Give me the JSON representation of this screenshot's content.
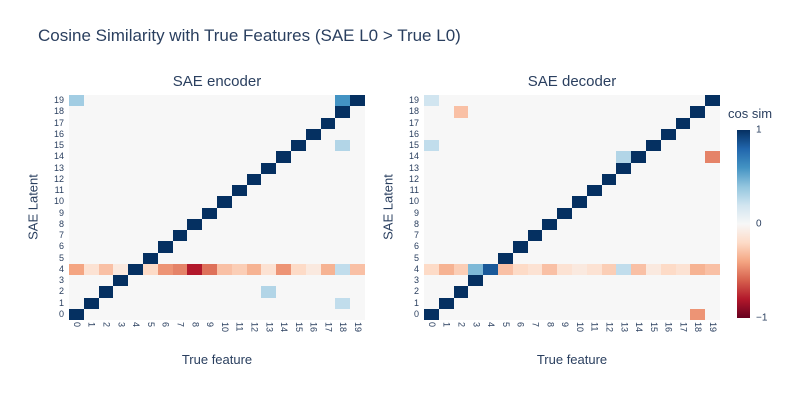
{
  "title": "Cosine Similarity with True Features (SAE L0 > True L0)",
  "axes": {
    "x_label": "True feature",
    "y_label": "SAE Latent",
    "tick_labels": [
      "0",
      "1",
      "2",
      "3",
      "4",
      "5",
      "6",
      "7",
      "8",
      "9",
      "10",
      "11",
      "12",
      "13",
      "14",
      "15",
      "16",
      "17",
      "18",
      "19"
    ]
  },
  "colorbar": {
    "title": "cos sim",
    "ticks": [
      "1",
      "0",
      "−1"
    ],
    "min": -1,
    "max": 1,
    "gradient_stops": [
      "#67001f",
      "#b2182b",
      "#d6604d",
      "#f4a582",
      "#fddbc7",
      "#f7f7f7",
      "#d1e5f0",
      "#92c5de",
      "#4393c3",
      "#2166ac",
      "#053061"
    ]
  },
  "chart_data": [
    {
      "type": "heatmap",
      "title": "SAE encoder",
      "xlabel": "True feature",
      "ylabel": "SAE Latent",
      "zmin": -1,
      "zmax": 1,
      "colorscale": "RdBu",
      "z": [
        [
          1,
          0,
          0,
          0,
          0,
          0,
          0,
          0,
          0,
          0,
          0,
          0,
          0,
          0,
          0,
          0,
          0,
          0,
          0,
          0
        ],
        [
          0,
          1,
          0,
          0,
          0,
          0,
          0,
          0,
          0,
          0,
          0,
          0,
          0,
          0,
          0,
          0,
          0,
          0,
          0.25,
          0
        ],
        [
          0,
          0,
          1,
          0,
          0,
          0,
          0,
          0,
          0,
          0,
          0,
          0,
          0,
          0.3,
          0,
          0,
          0,
          0,
          0,
          0
        ],
        [
          0,
          0,
          0,
          1,
          0,
          0,
          0,
          0,
          0,
          0,
          0,
          0,
          0,
          0,
          0,
          0,
          0,
          0,
          0,
          0
        ],
        [
          -0.4,
          -0.15,
          -0.3,
          -0.1,
          1,
          -0.2,
          -0.45,
          -0.5,
          -0.8,
          -0.55,
          -0.3,
          -0.25,
          -0.35,
          -0.15,
          -0.45,
          -0.2,
          -0.1,
          -0.35,
          0.25,
          -0.3
        ],
        [
          0,
          0,
          0,
          0,
          0,
          1,
          0,
          0,
          0,
          0,
          0,
          0,
          0,
          0,
          0,
          0,
          0,
          0,
          0,
          0
        ],
        [
          0,
          0,
          0,
          0,
          0,
          0,
          1,
          0,
          0,
          0,
          0,
          0,
          0,
          0,
          0,
          0,
          0,
          0,
          0,
          0
        ],
        [
          0,
          0,
          0,
          0,
          0,
          0,
          0,
          1,
          0,
          0,
          0,
          0,
          0,
          0,
          0,
          0,
          0,
          0,
          0,
          0
        ],
        [
          0,
          0,
          0,
          0,
          0,
          0,
          0,
          0,
          1,
          0,
          0,
          0,
          0,
          0,
          0,
          0,
          0,
          0,
          0,
          0
        ],
        [
          0,
          0,
          0,
          0,
          0,
          0,
          0,
          0,
          0,
          1,
          0,
          0,
          0,
          0,
          0,
          0,
          0,
          0,
          0,
          0
        ],
        [
          0,
          0,
          0,
          0,
          0,
          0,
          0,
          0,
          0,
          0,
          1,
          0,
          0,
          0,
          0,
          0,
          0,
          0,
          0,
          0
        ],
        [
          0,
          0,
          0,
          0,
          0,
          0,
          0,
          0,
          0,
          0,
          0,
          1,
          0,
          0,
          0,
          0,
          0,
          0,
          0,
          0
        ],
        [
          0,
          0,
          0,
          0,
          0,
          0,
          0,
          0,
          0,
          0,
          0,
          0,
          1,
          0,
          0,
          0,
          0,
          0,
          0,
          0
        ],
        [
          0,
          0,
          0,
          0,
          0,
          0,
          0,
          0,
          0,
          0,
          0,
          0,
          0,
          1,
          0,
          0,
          0,
          0,
          0,
          0
        ],
        [
          0,
          0,
          0,
          0,
          0,
          0,
          0,
          0,
          0,
          0,
          0,
          0,
          0,
          0,
          1,
          0,
          0,
          0,
          0,
          0
        ],
        [
          0,
          0,
          0,
          0,
          0,
          0,
          0,
          0,
          0,
          0,
          0,
          0,
          0,
          0,
          0,
          1,
          0,
          0,
          0.3,
          0
        ],
        [
          0,
          0,
          0,
          0,
          0,
          0,
          0,
          0,
          0,
          0,
          0,
          0,
          0,
          0,
          0,
          0,
          1,
          0,
          0,
          0
        ],
        [
          0,
          0,
          0,
          0,
          0,
          0,
          0,
          0,
          0,
          0,
          0,
          0,
          0,
          0,
          0,
          0,
          0,
          1,
          0,
          0
        ],
        [
          0,
          0,
          0,
          0,
          0,
          0,
          0,
          0,
          0,
          0,
          0,
          0,
          0,
          0,
          0,
          0,
          0,
          0,
          1,
          0
        ],
        [
          0.35,
          0,
          0,
          0,
          0,
          0,
          0,
          0,
          0,
          0,
          0,
          0,
          0,
          0,
          0,
          0,
          0,
          0,
          0.6,
          1
        ]
      ]
    },
    {
      "type": "heatmap",
      "title": "SAE decoder",
      "xlabel": "True feature",
      "ylabel": "SAE Latent",
      "zmin": -1,
      "zmax": 1,
      "colorscale": "RdBu",
      "z": [
        [
          1,
          0,
          0,
          0,
          0,
          0,
          0,
          0,
          0,
          0,
          0,
          0,
          0,
          0,
          0,
          0,
          0,
          0,
          -0.45,
          0
        ],
        [
          0,
          1,
          0,
          0,
          0,
          0,
          0,
          0,
          0,
          0,
          0,
          0,
          0,
          0,
          0,
          0,
          0,
          0,
          0,
          0
        ],
        [
          0,
          0,
          1,
          0,
          0,
          0,
          0,
          0,
          0,
          0,
          0,
          0,
          0,
          0,
          0,
          0,
          0,
          0,
          0,
          0
        ],
        [
          0,
          0,
          0,
          1,
          0,
          0,
          0,
          0,
          0,
          0,
          0,
          0,
          0,
          0,
          0,
          0,
          0,
          0,
          0,
          0
        ],
        [
          -0.2,
          -0.35,
          -0.25,
          0.45,
          0.85,
          -0.3,
          -0.2,
          -0.15,
          -0.3,
          -0.15,
          -0.1,
          -0.15,
          -0.25,
          0.25,
          -0.3,
          -0.1,
          -0.2,
          -0.15,
          -0.35,
          -0.3
        ],
        [
          0,
          0,
          0,
          0,
          0,
          1,
          0,
          0,
          0,
          0,
          0,
          0,
          0,
          0,
          0,
          0,
          0,
          0,
          0,
          0
        ],
        [
          0,
          0,
          0,
          0,
          0,
          0,
          1,
          0,
          0,
          0,
          0,
          0,
          0,
          0,
          0,
          0,
          0,
          0,
          0,
          0
        ],
        [
          0,
          0,
          0,
          0,
          0,
          0,
          0,
          1,
          0,
          0,
          0,
          0,
          0,
          0,
          0,
          0,
          0,
          0,
          0,
          0
        ],
        [
          0,
          0,
          0,
          0,
          0,
          0,
          0,
          0,
          1,
          0,
          0,
          0,
          0,
          0,
          0,
          0,
          0,
          0,
          0,
          0
        ],
        [
          0,
          0,
          0,
          0,
          0,
          0,
          0,
          0,
          0,
          1,
          0,
          0,
          0,
          0,
          0,
          0,
          0,
          0,
          0,
          0
        ],
        [
          0,
          0,
          0,
          0,
          0,
          0,
          0,
          0,
          0,
          0,
          1,
          0,
          0,
          0,
          0,
          0,
          0,
          0,
          0,
          0
        ],
        [
          0,
          0,
          0,
          0,
          0,
          0,
          0,
          0,
          0,
          0,
          0,
          1,
          0,
          0,
          0,
          0,
          0,
          0,
          0,
          0
        ],
        [
          0,
          0,
          0,
          0,
          0,
          0,
          0,
          0,
          0,
          0,
          0,
          0,
          1,
          0,
          0,
          0,
          0,
          0,
          0,
          0
        ],
        [
          0,
          0,
          0,
          0,
          0,
          0,
          0,
          0,
          0,
          0,
          0,
          0,
          0,
          1,
          0,
          0,
          0,
          0,
          0,
          0
        ],
        [
          0,
          0,
          0,
          0,
          0,
          0,
          0,
          0,
          0,
          0,
          0,
          0,
          0,
          0.3,
          1,
          0,
          0,
          0,
          0,
          -0.5
        ],
        [
          0.25,
          0,
          0,
          0,
          0,
          0,
          0,
          0,
          0,
          0,
          0,
          0,
          0,
          0,
          0,
          1,
          0,
          0,
          0,
          0
        ],
        [
          0,
          0,
          0,
          0,
          0,
          0,
          0,
          0,
          0,
          0,
          0,
          0,
          0,
          0,
          0,
          0,
          1,
          0,
          0,
          0
        ],
        [
          0,
          0,
          0,
          0,
          0,
          0,
          0,
          0,
          0,
          0,
          0,
          0,
          0,
          0,
          0,
          0,
          0,
          1,
          0,
          0
        ],
        [
          0,
          0,
          -0.3,
          0,
          0,
          0,
          0,
          0,
          0,
          0,
          0,
          0,
          0,
          0,
          0,
          0,
          0,
          0,
          1,
          0
        ],
        [
          0.2,
          0,
          0,
          0,
          0,
          0,
          0,
          0,
          0,
          0,
          0,
          0,
          0,
          0,
          0,
          0,
          0,
          0,
          0,
          1
        ]
      ]
    }
  ]
}
